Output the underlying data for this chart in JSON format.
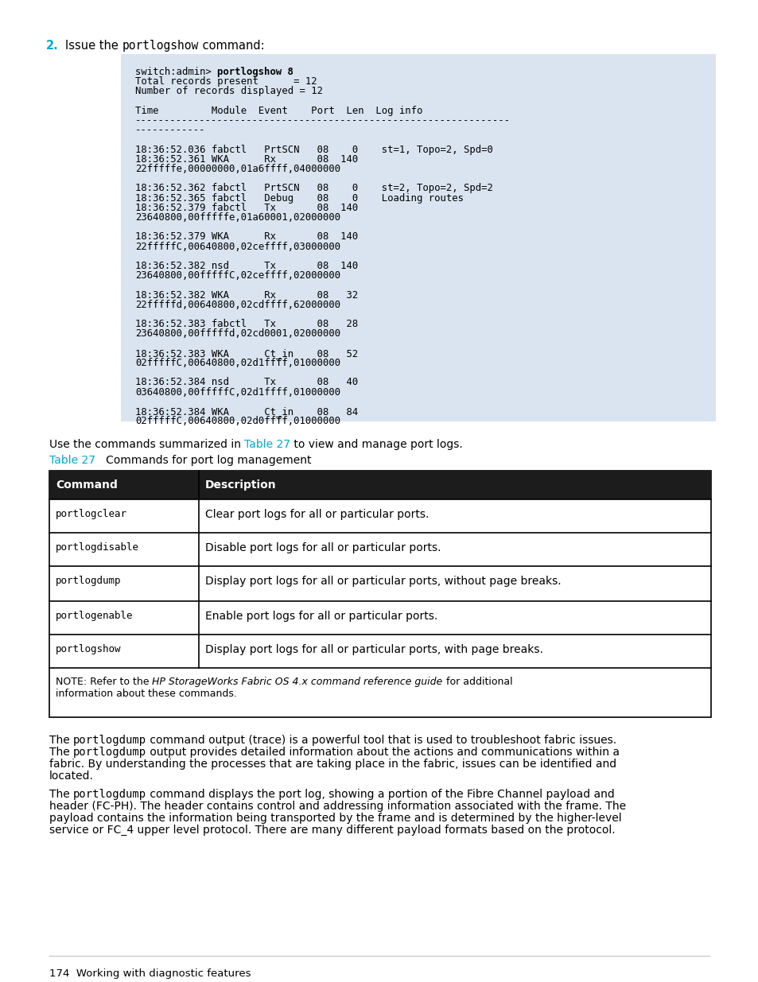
{
  "page_bg": "#ffffff",
  "code_box_bg": "#d9e4f0",
  "cyan_color": "#00aacc",
  "code_lines": [
    {
      "parts": [
        {
          "t": "switch:admin> ",
          "bold": false
        },
        {
          "t": "portlogshow 8",
          "bold": true
        }
      ]
    },
    {
      "parts": [
        {
          "t": "Total records present      = 12",
          "bold": false
        }
      ]
    },
    {
      "parts": [
        {
          "t": "Number of records displayed = 12",
          "bold": false
        }
      ]
    },
    {
      "parts": [
        {
          "t": "",
          "bold": false
        }
      ]
    },
    {
      "parts": [
        {
          "t": "Time         Module  Event    Port  Len  Log info",
          "bold": false
        }
      ]
    },
    {
      "parts": [
        {
          "t": "----------------------------------------------------------------",
          "bold": false
        }
      ]
    },
    {
      "parts": [
        {
          "t": "------------",
          "bold": false
        }
      ]
    },
    {
      "parts": [
        {
          "t": "",
          "bold": false
        }
      ]
    },
    {
      "parts": [
        {
          "t": "18:36:52.036 fabctl   PrtSCN   08    0    st=1, Topo=2, Spd=0",
          "bold": false
        }
      ]
    },
    {
      "parts": [
        {
          "t": "18:36:52.361 WKA      Rx       08  140",
          "bold": false
        }
      ]
    },
    {
      "parts": [
        {
          "t": "22fffffe,00000000,01a6ffff,04000000",
          "bold": false
        }
      ]
    },
    {
      "parts": [
        {
          "t": "",
          "bold": false
        }
      ]
    },
    {
      "parts": [
        {
          "t": "18:36:52.362 fabctl   PrtSCN   08    0    st=2, Topo=2, Spd=2",
          "bold": false
        }
      ]
    },
    {
      "parts": [
        {
          "t": "18:36:52.365 fabctl   Debug    08    0    Loading routes",
          "bold": false
        }
      ]
    },
    {
      "parts": [
        {
          "t": "18:36:52.379 fabctl   Tx       08  140",
          "bold": false
        }
      ]
    },
    {
      "parts": [
        {
          "t": "23640800,00fffffe,01a60001,02000000",
          "bold": false
        }
      ]
    },
    {
      "parts": [
        {
          "t": "",
          "bold": false
        }
      ]
    },
    {
      "parts": [
        {
          "t": "18:36:52.379 WKA      Rx       08  140",
          "bold": false
        }
      ]
    },
    {
      "parts": [
        {
          "t": "22fffffC,00640800,02ceffff,03000000",
          "bold": false
        }
      ]
    },
    {
      "parts": [
        {
          "t": "",
          "bold": false
        }
      ]
    },
    {
      "parts": [
        {
          "t": "18:36:52.382 nsd      Tx       08  140",
          "bold": false
        }
      ]
    },
    {
      "parts": [
        {
          "t": "23640800,00fffffC,02ceffff,02000000",
          "bold": false
        }
      ]
    },
    {
      "parts": [
        {
          "t": "",
          "bold": false
        }
      ]
    },
    {
      "parts": [
        {
          "t": "18:36:52.382 WKA      Rx       08   32",
          "bold": false
        }
      ]
    },
    {
      "parts": [
        {
          "t": "22fffffd,00640800,02cdffff,62000000",
          "bold": false
        }
      ]
    },
    {
      "parts": [
        {
          "t": "",
          "bold": false
        }
      ]
    },
    {
      "parts": [
        {
          "t": "18:36:52.383 fabctl   Tx       08   28",
          "bold": false
        }
      ]
    },
    {
      "parts": [
        {
          "t": "23640800,00fffffd,02cd0001,02000000",
          "bold": false
        }
      ]
    },
    {
      "parts": [
        {
          "t": "",
          "bold": false
        }
      ]
    },
    {
      "parts": [
        {
          "t": "18:36:52.383 WKA      Ct_in    08   52",
          "bold": false
        }
      ]
    },
    {
      "parts": [
        {
          "t": "02fffffC,00640800,02d1ffff,01000000",
          "bold": false
        }
      ]
    },
    {
      "parts": [
        {
          "t": "",
          "bold": false
        }
      ]
    },
    {
      "parts": [
        {
          "t": "18:36:52.384 nsd      Tx       08   40",
          "bold": false
        }
      ]
    },
    {
      "parts": [
        {
          "t": "03640800,00fffffC,02d1ffff,01000000",
          "bold": false
        }
      ]
    },
    {
      "parts": [
        {
          "t": "",
          "bold": false
        }
      ]
    },
    {
      "parts": [
        {
          "t": "18:36:52.384 WKA      Ct_in    08   84",
          "bold": false
        }
      ]
    },
    {
      "parts": [
        {
          "t": "02fffffC,00640800,02d0ffff,01000000",
          "bold": false
        }
      ]
    }
  ],
  "table_rows": [
    [
      "portlogclear",
      "Clear port logs for all or particular ports."
    ],
    [
      "portlogdisable",
      "Disable port logs for all or particular ports."
    ],
    [
      "portlogdump",
      "Display port logs for all or particular ports, without page breaks."
    ],
    [
      "portlogenable",
      "Enable port logs for all or particular ports."
    ],
    [
      "portlogshow",
      "Display port logs for all or particular ports, with page breaks."
    ]
  ],
  "footer_text": "174  Working with diagnostic features"
}
